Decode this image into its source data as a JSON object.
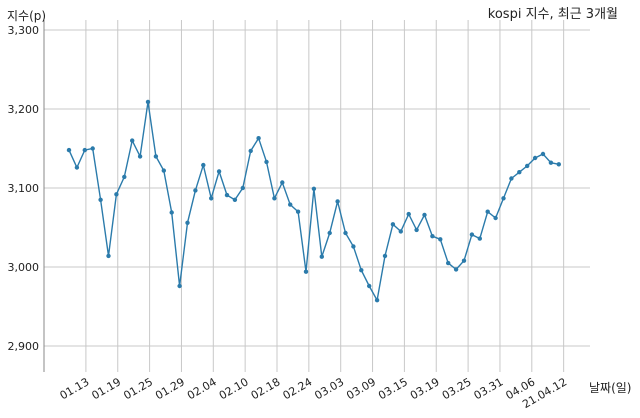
{
  "chart_data": {
    "type": "line",
    "title": "kospi 지수, 최근 3개월",
    "ylabel": "지수(p)",
    "xlabel": "날짜(일)",
    "ylim": [
      2900,
      3300
    ],
    "yticks": [
      "2,900",
      "3,000",
      "3,100",
      "3,200",
      "3,300"
    ],
    "xticks": [
      "01.13",
      "01.19",
      "01.25",
      "01.29",
      "02.04",
      "02.10",
      "02.18",
      "02.24",
      "03.03",
      "03.09",
      "03.15",
      "03.19",
      "03.25",
      "03.31",
      "04.06",
      "21.04.12"
    ],
    "grid": true,
    "series": [
      {
        "values": [
          3148,
          3126,
          3148,
          3150,
          3085,
          3014,
          3092,
          3114,
          3160,
          3140,
          3209,
          3140,
          3122,
          3069,
          2976,
          3056,
          3097,
          3129,
          3087,
          3121,
          3091,
          3085,
          3100,
          3147,
          3163,
          3133,
          3087,
          3107,
          3079,
          3070,
          2994,
          3099,
          3013,
          3043,
          3083,
          3043,
          3026,
          2996,
          2976,
          2958,
          3014,
          3054,
          3045,
          3067,
          3047,
          3066,
          3039,
          3035,
          3005,
          2997,
          3008,
          3041,
          3036,
          3070,
          3062,
          3087,
          3112,
          3120,
          3128,
          3138,
          3143,
          3132,
          3130
        ]
      }
    ]
  },
  "style": {
    "line_color": "#2b7bab",
    "grid_color": "#c8c8c8",
    "axis_color": "#888888"
  }
}
